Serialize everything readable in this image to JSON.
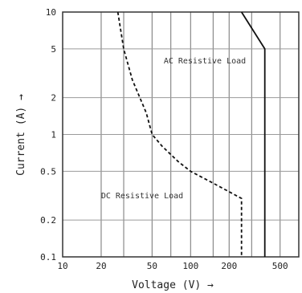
{
  "chart_data": {
    "type": "line",
    "xlabel": "Voltage (V) →",
    "ylabel": "Current (A) →",
    "x_scale": "log",
    "y_scale": "log",
    "xlim": [
      10,
      700
    ],
    "ylim": [
      0.1,
      10
    ],
    "grid": true,
    "x_ticks": [
      10,
      20,
      50,
      100,
      200,
      500
    ],
    "x_tick_labels": [
      "10",
      "20",
      "50",
      "100",
      "200",
      "500"
    ],
    "y_ticks": [
      0.1,
      0.2,
      0.5,
      1,
      2,
      5,
      10
    ],
    "y_tick_labels": [
      "0.1",
      "0.2",
      "0.5",
      "1",
      "2",
      "5",
      "10"
    ],
    "x_grid": [
      20,
      30,
      50,
      70,
      100,
      150,
      200,
      300,
      500
    ],
    "y_grid": [
      0.2,
      0.5,
      1,
      2,
      5
    ],
    "series": [
      {
        "name": "AC Resistive Load",
        "style": "solid",
        "color": "#111111",
        "points": [
          [
            250,
            10
          ],
          [
            380,
            5
          ],
          [
            380,
            0.1
          ]
        ]
      },
      {
        "name": "DC Resistive Load",
        "style": "dashed",
        "color": "#111111",
        "points": [
          [
            27,
            10
          ],
          [
            30,
            5
          ],
          [
            35,
            2.8
          ],
          [
            45,
            1.5
          ],
          [
            50,
            1
          ],
          [
            60,
            0.8
          ],
          [
            80,
            0.6
          ],
          [
            100,
            0.5
          ],
          [
            150,
            0.4
          ],
          [
            200,
            0.34
          ],
          [
            250,
            0.3
          ],
          [
            250,
            0.1
          ]
        ]
      }
    ]
  }
}
